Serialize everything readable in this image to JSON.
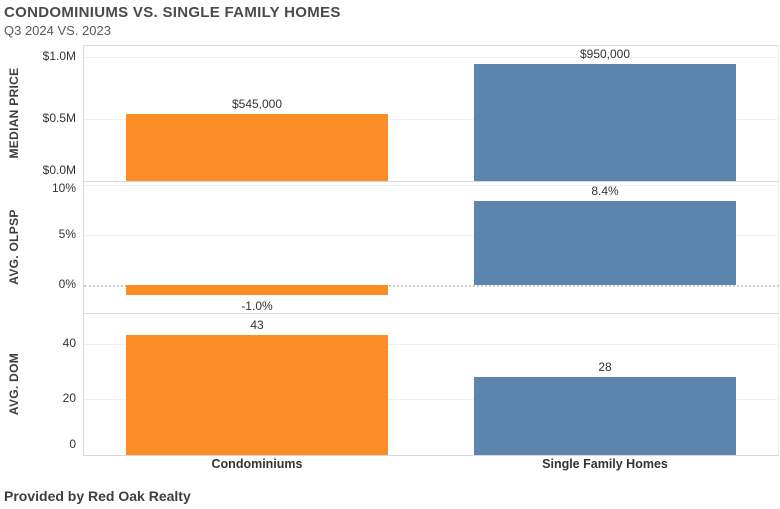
{
  "header": {
    "title": "CONDOMINIUMS VS. SINGLE FAMILY HOMES",
    "subtitle": "Q3 2024 VS. 2023"
  },
  "footer": {
    "credit": "Provided by Red Oak Realty"
  },
  "colors": {
    "condominiums": "#FB8C26",
    "single_family_homes": "#5C85AD",
    "gridline": "#f0f0f0",
    "panel_border": "#d9d9d9",
    "text": "#333333"
  },
  "chart_data": {
    "type": "bar",
    "title": "CONDOMINIUMS VS. SINGLE FAMILY HOMES",
    "subtitle": "Q3 2024 VS. 2023",
    "categories": [
      "Condominiums",
      "Single Family Homes"
    ],
    "legend": "none",
    "grid": true,
    "panels": [
      {
        "metric": "MEDIAN PRICE",
        "unit": "USD",
        "values": [
          545000,
          950000
        ],
        "value_labels": [
          "$545,000",
          "$950,000"
        ],
        "ticks": [
          {
            "v": 1000000,
            "label": "$1.0M"
          },
          {
            "v": 500000,
            "label": "$0.5M"
          },
          {
            "v": 0,
            "label": "$0.0M"
          }
        ],
        "ylim": [
          0,
          1100000
        ]
      },
      {
        "metric": "AVG. OLPSP",
        "unit": "percent",
        "values": [
          -1.0,
          8.4
        ],
        "value_labels": [
          "-1.0%",
          "8.4%"
        ],
        "ticks": [
          {
            "v": 10,
            "label": "10%"
          },
          {
            "v": 5,
            "label": "5%"
          },
          {
            "v": 0,
            "label": "0%",
            "dotted": true
          }
        ],
        "ylim": [
          -2.8,
          10.4
        ]
      },
      {
        "metric": "AVG. DOM",
        "unit": "days",
        "values": [
          43,
          28
        ],
        "value_labels": [
          "43",
          "28"
        ],
        "ticks": [
          {
            "v": 40,
            "label": "40"
          },
          {
            "v": 20,
            "label": "20"
          },
          {
            "v": 0,
            "label": "0"
          }
        ],
        "ylim": [
          0,
          51
        ]
      }
    ]
  }
}
